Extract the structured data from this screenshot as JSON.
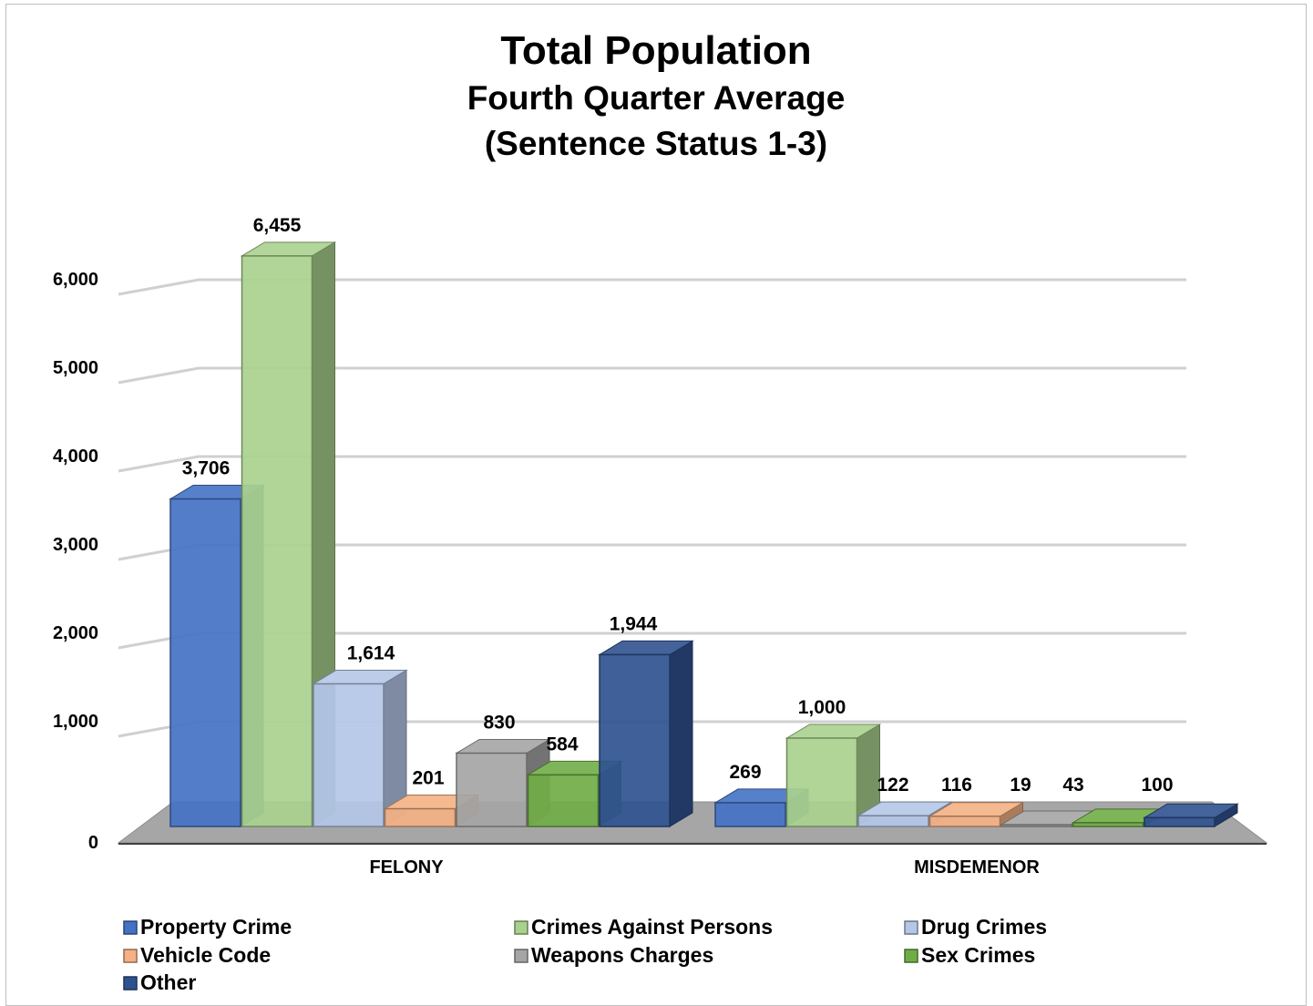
{
  "chart_data": {
    "type": "bar",
    "title": "Total Population",
    "subtitle_lines": [
      "Fourth Quarter Average",
      "(Sentence Status 1-3)"
    ],
    "categories": [
      "FELONY",
      "MISDEMENOR"
    ],
    "series": [
      {
        "name": "Property Crime",
        "values": [
          3706,
          269
        ],
        "labels": [
          "3,706",
          "269"
        ],
        "color": "#4472c4"
      },
      {
        "name": "Crimes Against Persons",
        "values": [
          6455,
          1000
        ],
        "labels": [
          "6,455",
          "1,000"
        ],
        "color": "#a9d18e"
      },
      {
        "name": "Drug Crimes",
        "values": [
          1614,
          122
        ],
        "labels": [
          "1,614",
          "122"
        ],
        "color": "#b4c7e7"
      },
      {
        "name": "Vehicle Code",
        "values": [
          201,
          116
        ],
        "labels": [
          "201",
          "116"
        ],
        "color": "#f4b183"
      },
      {
        "name": "Weapons Charges",
        "values": [
          830,
          19
        ],
        "labels": [
          "830",
          "19"
        ],
        "color": "#a5a5a5"
      },
      {
        "name": "Sex Crimes",
        "values": [
          584,
          43
        ],
        "labels": [
          "584",
          "43"
        ],
        "color": "#70ad47"
      },
      {
        "name": "Other",
        "values": [
          1944,
          100
        ],
        "labels": [
          "1,944",
          "100"
        ],
        "color": "#2f528f"
      }
    ],
    "y_ticks": [
      0,
      1000,
      2000,
      3000,
      4000,
      5000,
      6000
    ],
    "y_tick_labels": [
      "0",
      "1,000",
      "2,000",
      "3,000",
      "4,000",
      "5,000",
      "6,000"
    ],
    "ylim": [
      0,
      6000
    ],
    "grid": true,
    "legend_position": "bottom"
  }
}
